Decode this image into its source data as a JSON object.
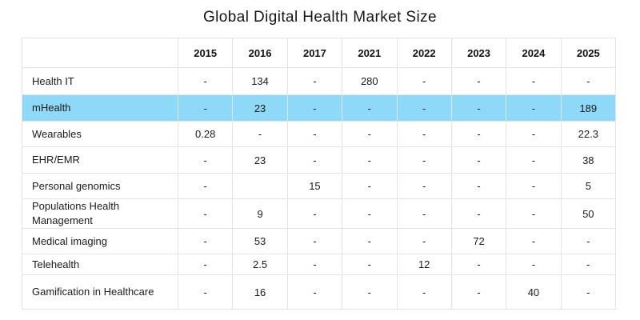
{
  "colors": {
    "highlight_row": "#8ed8f8",
    "border": "#e4e4e4",
    "text": "#1b1b1b",
    "title": "#161616"
  },
  "chart_data": {
    "type": "table",
    "title": "Global Digital Health Market Size",
    "corner_label": "",
    "columns": [
      "2015",
      "2016",
      "2017",
      "2021",
      "2022",
      "2023",
      "2024",
      "2025"
    ],
    "highlighted_row": "mHealth",
    "rows": [
      {
        "label": "Health IT",
        "highlight": false,
        "values": [
          "-",
          "134",
          "-",
          "280",
          "-",
          "-",
          "-",
          "-"
        ]
      },
      {
        "label": "mHealth",
        "highlight": true,
        "values": [
          "-",
          "23",
          "-",
          "-",
          "-",
          "-",
          "-",
          "189"
        ]
      },
      {
        "label": "Wearables",
        "highlight": false,
        "values": [
          "0.28",
          "-",
          "-",
          "-",
          "-",
          "-",
          "-",
          "22.3"
        ]
      },
      {
        "label": "EHR/EMR",
        "highlight": false,
        "values": [
          "-",
          "23",
          "-",
          "-",
          "-",
          "-",
          "-",
          "38"
        ]
      },
      {
        "label": "Personal genomics",
        "highlight": false,
        "values": [
          "-",
          "",
          "15",
          "-",
          "-",
          "-",
          "-",
          "5"
        ]
      },
      {
        "label": "Populations Health Management",
        "highlight": false,
        "values": [
          "-",
          "9",
          "-",
          "-",
          "-",
          "-",
          "-",
          "50"
        ]
      },
      {
        "label": "Medical imaging",
        "highlight": false,
        "values": [
          "-",
          "53",
          "-",
          "-",
          "-",
          "72",
          "-",
          "-"
        ]
      },
      {
        "label": "Telehealth",
        "highlight": false,
        "values": [
          "-",
          "2.5",
          "-",
          "-",
          "12",
          "-",
          "-",
          "-"
        ]
      },
      {
        "label": "Gamification in Healthcare",
        "highlight": false,
        "values": [
          "-",
          "16",
          "-",
          "-",
          "-",
          "-",
          "40",
          "-"
        ]
      }
    ]
  }
}
